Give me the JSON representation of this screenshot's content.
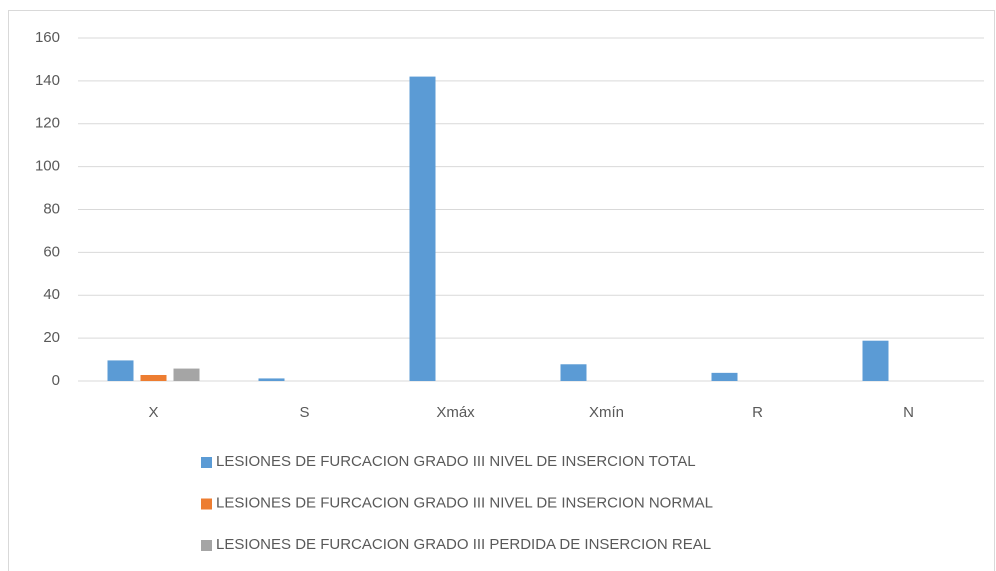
{
  "chart_data": {
    "type": "bar",
    "categories": [
      "X",
      "S",
      "Xmáx",
      "Xmín",
      "R",
      "N"
    ],
    "series": [
      {
        "name": "LESIONES DE FURCACION GRADO III NIVEL DE INSERCION TOTAL",
        "color": "#5b9bd5",
        "values": [
          9.6,
          1.2,
          142,
          7.8,
          3.8,
          18.8
        ]
      },
      {
        "name": "LESIONES DE FURCACION GRADO III NIVEL DE INSERCION NORMAL",
        "color": "#ed7d31",
        "values": [
          2.8,
          0,
          0,
          0,
          0,
          0
        ]
      },
      {
        "name": "LESIONES DE FURCACION GRADO III PERDIDA DE INSERCION REAL",
        "color": "#a5a5a5",
        "values": [
          5.8,
          0,
          0,
          0,
          0,
          0
        ]
      }
    ],
    "ylim": [
      0,
      160
    ],
    "yticks": [
      0,
      20,
      40,
      60,
      80,
      100,
      120,
      140,
      160
    ],
    "grid": true,
    "legend": "bottom"
  }
}
